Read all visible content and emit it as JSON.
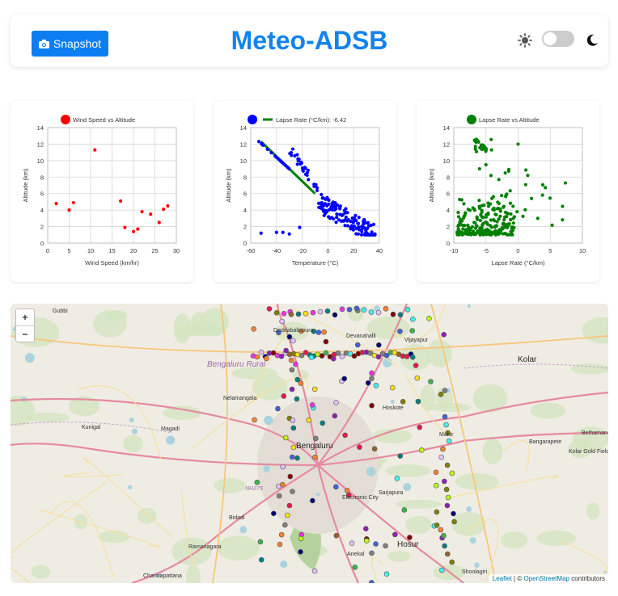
{
  "header": {
    "snapshot_label": "Snapshot",
    "title": "Meteo-ADSB"
  },
  "colors": {
    "primary": "#0d7ef2",
    "title": "#1283ee",
    "red": "#ff0000",
    "blue": "#0000ff",
    "green": "#008000"
  },
  "icons": {
    "camera": "camera-icon",
    "sun": "sun-icon",
    "moon": "moon-icon"
  },
  "chart_data": [
    {
      "type": "scatter",
      "title": "Wind Speed vs Altitude",
      "legend": "Wind Speed vs Altitude",
      "color": "#ff0000",
      "xlabel": "Wind Speed (km/hr)",
      "ylabel": "Altitude (km)",
      "xlim": [
        0,
        30
      ],
      "ylim": [
        0,
        14
      ],
      "xticks": [
        0,
        5,
        10,
        15,
        20,
        25,
        30
      ],
      "yticks": [
        0,
        2,
        4,
        6,
        8,
        10,
        12,
        14
      ],
      "points": [
        [
          2,
          4.8
        ],
        [
          5,
          4.0
        ],
        [
          6,
          4.9
        ],
        [
          11,
          11.3
        ],
        [
          17,
          5.1
        ],
        [
          18,
          1.9
        ],
        [
          20,
          1.4
        ],
        [
          21,
          1.7
        ],
        [
          22,
          3.8
        ],
        [
          24,
          3.5
        ],
        [
          26,
          2.5
        ],
        [
          27,
          4.1
        ],
        [
          28,
          4.5
        ]
      ]
    },
    {
      "type": "scatter",
      "title": "Lapse Rate",
      "legend": "Lapse Rate (°C/km): -6.42",
      "color": "#0000ff",
      "linecolor": "#008000",
      "xlabel": "Temperature (°C)",
      "ylabel": "Altitude (km)",
      "xlim": [
        -60,
        40
      ],
      "ylim": [
        0,
        14
      ],
      "xticks": [
        -60,
        -40,
        -20,
        0,
        20,
        40
      ],
      "yticks": [
        0,
        2,
        4,
        6,
        8,
        10,
        12,
        14
      ],
      "fit": [
        [
          -52,
          12.3
        ],
        [
          -10,
          6.0
        ]
      ]
    },
    {
      "type": "scatter",
      "title": "Lapse Rate vs Altitude",
      "legend": "Lapse Rate vs Altitude",
      "color": "#008000",
      "xlabel": "Lapse Rate (°C/km)",
      "ylabel": "Altitude (km)",
      "xlim": [
        -10,
        10
      ],
      "ylim": [
        0,
        14
      ],
      "xticks": [
        -10,
        -5,
        0,
        5,
        10
      ],
      "yticks": [
        0,
        2,
        4,
        6,
        8,
        10,
        12,
        14
      ]
    }
  ],
  "map": {
    "zoom_in": "+",
    "zoom_out": "−",
    "attribution": {
      "leaflet": "Leaflet",
      "sep": "| ©",
      "osm": "OpenStreetMap",
      "rest": "contributors"
    },
    "places": [
      "Gubbi",
      "Doddaballapura",
      "Devanahalli",
      "Vijayapur",
      "Bengaluru Rural",
      "Nelamangala",
      "Hoskote",
      "Kolar",
      "Kunigal",
      "Magadi",
      "Bengaluru",
      "Malur",
      "Bangarapete",
      "Kolar Gold Fields",
      "Bethaman",
      "Electronic City",
      "Sarjapura",
      "Bidadi",
      "Ramanagara",
      "Hosur",
      "Anekal",
      "Channapattana",
      "Shoolagiri",
      "NH275"
    ]
  }
}
